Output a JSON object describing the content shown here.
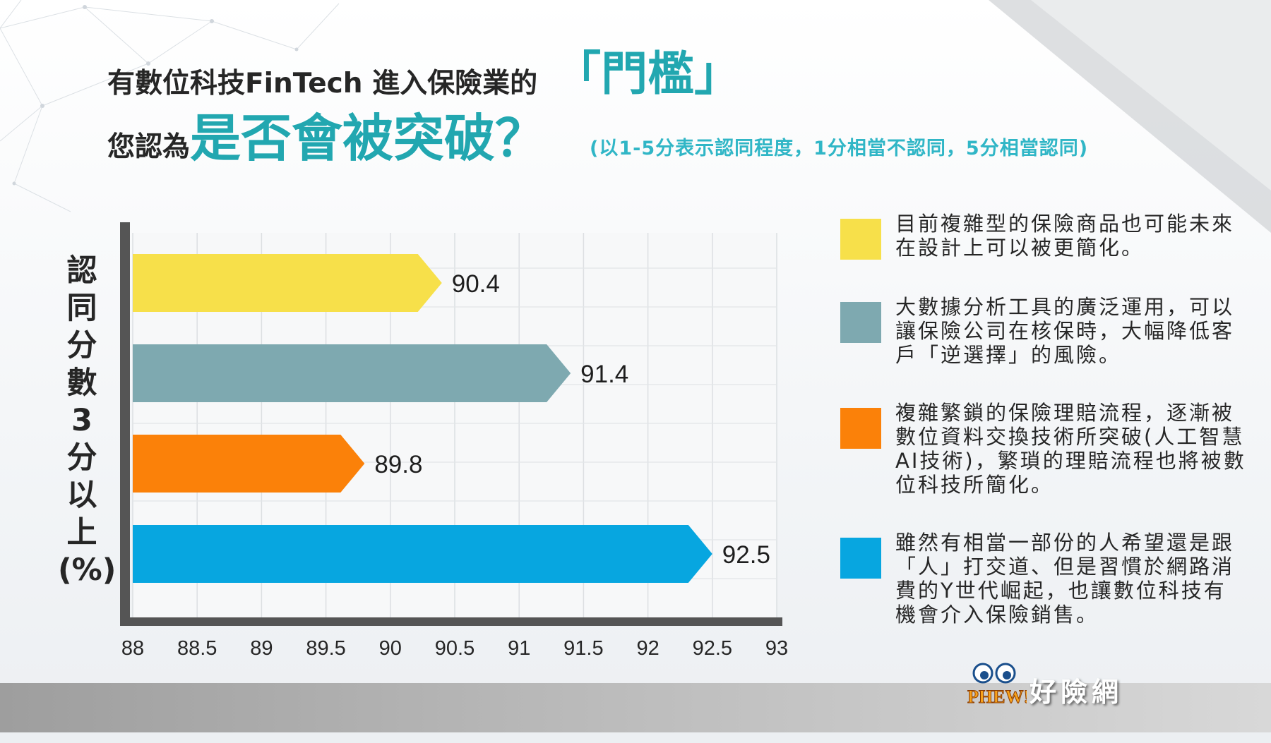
{
  "title": {
    "line1_prefix": "有數位科技FinTech 進入保險業的",
    "line1_highlight": "「門檻」",
    "line2_prefix": "您認為",
    "line2_highlight": "是否會被突破？",
    "subtitle": "(以1-5分表示認同程度，1分相當不認同，5分相當認同)"
  },
  "colors": {
    "title_accent": "#22a7b0",
    "subtitle": "#30b6c6",
    "axis": "#555555",
    "yellow": "#f7e04a",
    "teal_gray": "#7ea9b0",
    "orange": "#fb8109",
    "blue": "#07a6e0"
  },
  "chart_data": {
    "type": "bar",
    "orientation": "horizontal",
    "ylabel": "認同分數3分以上(%)",
    "xlim": [
      88,
      93
    ],
    "x_ticks": [
      "88",
      "88.5",
      "89",
      "89.5",
      "90",
      "90.5",
      "91",
      "91.5",
      "92",
      "92.5",
      "93"
    ],
    "grid": true,
    "values": [
      90.4,
      91.4,
      89.8,
      92.5
    ],
    "value_labels": [
      "90.4",
      "91.4",
      "89.8",
      "92.5"
    ],
    "bar_colors": [
      "#f7e04a",
      "#7ea9b0",
      "#fb8109",
      "#07a6e0"
    ]
  },
  "legend": [
    {
      "color": "#f7e04a",
      "text": "目前複雜型的保險商品也可能未來在設計上可以被更簡化。"
    },
    {
      "color": "#7ea9b0",
      "text": "大數據分析工具的廣泛運用，可以讓保險公司在核保時，大幅降低客戶「逆選擇」的風險。"
    },
    {
      "color": "#fb8109",
      "text": "複雜繁鎖的保險理賠流程，逐漸被數位資料交換技術所突破(人工智慧AI技術)，繁瑣的理賠流程也將被數位科技所簡化。"
    },
    {
      "color": "#07a6e0",
      "text": "雖然有相當一部份的人希望還是跟「人」打交道、但是習慣於網路消費的Y世代崛起，也讓數位科技有機會介入保險銷售。"
    }
  ],
  "logo": {
    "mark_text": "PHEW!",
    "name": "好險網"
  }
}
